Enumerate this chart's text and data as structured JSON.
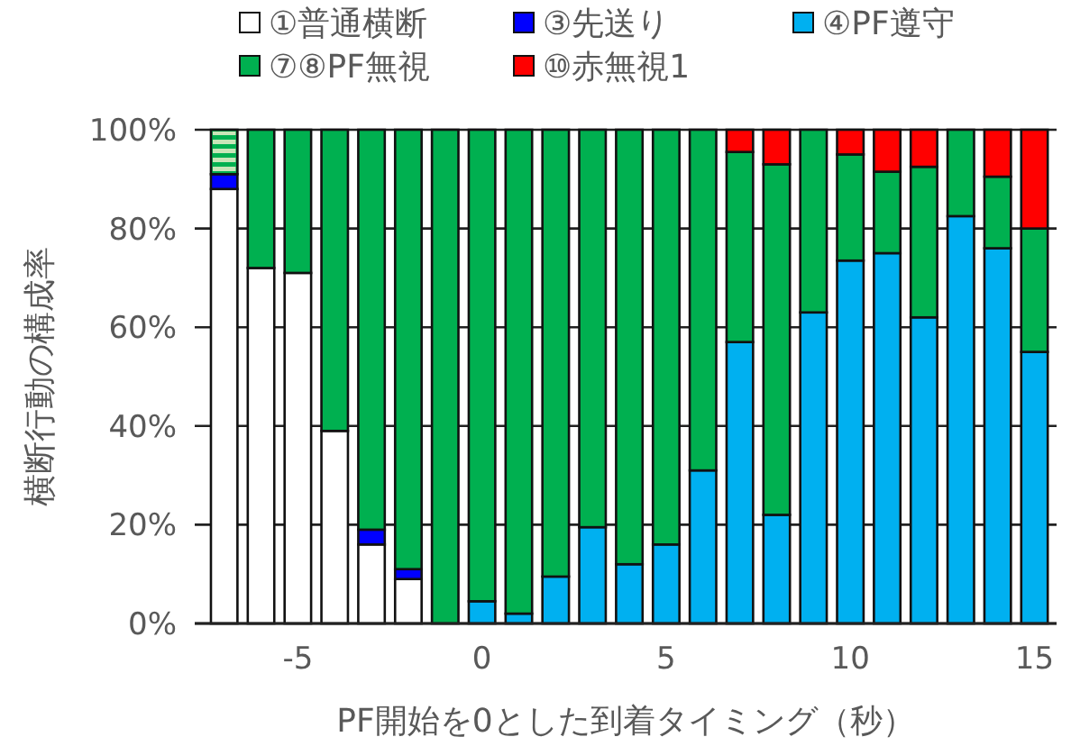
{
  "chart_data": {
    "type": "bar",
    "stacked": true,
    "xlabel": "PF開始を0とした到着タイミング（秒）",
    "ylabel": "横断行動の構成率",
    "x": [
      -7,
      -6,
      -5,
      -4,
      -3,
      -2,
      -1,
      0,
      1,
      2,
      3,
      4,
      5,
      6,
      7,
      8,
      9,
      10,
      11,
      12,
      13,
      14,
      15
    ],
    "xlim": [
      -7.8,
      15.6
    ],
    "xticks": [
      -5,
      0,
      5,
      10,
      15
    ],
    "ylim": [
      0,
      100
    ],
    "yticks": [
      {
        "value": 0,
        "label": "0%"
      },
      {
        "value": 20,
        "label": "20%"
      },
      {
        "value": 40,
        "label": "40%"
      },
      {
        "value": 60,
        "label": "60%"
      },
      {
        "value": 80,
        "label": "80%"
      },
      {
        "value": 100,
        "label": "100%"
      }
    ],
    "grid": "y",
    "legend": "top",
    "series": [
      {
        "name": "①普通横断",
        "color": "#ffffff",
        "values": [
          88,
          72,
          71,
          39,
          16,
          9,
          0,
          0,
          0,
          0,
          0,
          0,
          0,
          0,
          0,
          0,
          0,
          0,
          0,
          0,
          0,
          0,
          0
        ]
      },
      {
        "name": "③先送り",
        "color": "#0000ff",
        "values": [
          3,
          0,
          0,
          0,
          3,
          2,
          0,
          0,
          0,
          0,
          0,
          0,
          0,
          0,
          0,
          0,
          0,
          0,
          0,
          0,
          0,
          0,
          0
        ]
      },
      {
        "name": "④PF遵守",
        "color": "#00b0f0",
        "values": [
          0,
          0,
          0,
          0,
          0,
          0,
          0,
          4.5,
          2,
          9.5,
          19.5,
          12,
          16,
          31,
          57,
          22,
          63,
          73.5,
          75,
          62,
          82.5,
          76,
          55
        ]
      },
      {
        "name": "⑦⑧PF無視",
        "color": "#00b050",
        "values": [
          9,
          28,
          29,
          61,
          81,
          89,
          100,
          95.5,
          98,
          90.5,
          80.5,
          88,
          84,
          69,
          38.5,
          71,
          37,
          21.5,
          16.5,
          30.5,
          17.5,
          14.5,
          25
        ]
      },
      {
        "name": "⑩赤無視1",
        "color": "#ff0000",
        "values": [
          0,
          0,
          0,
          0,
          0,
          0,
          0,
          0,
          0,
          0,
          0,
          0,
          0,
          0,
          4.5,
          7,
          0,
          5,
          8.5,
          7.5,
          0,
          9.5,
          20
        ]
      }
    ]
  }
}
